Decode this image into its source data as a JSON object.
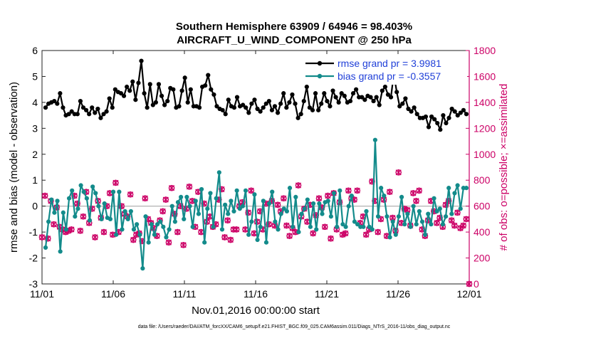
{
  "chart_data": {
    "type": "line",
    "title_line1": "Southern Hemisphere 63909 / 64946 = 98.403%",
    "title_line2": "AIRCRAFT_U_WIND_COMPONENT @ 250 hPa",
    "xlabel": "Nov.01,2016 00:00:00 start",
    "ylabel_left": "rmse and bias (model - observation)",
    "ylabel_right": "# of obs: o=possible; ×=assimilated",
    "footer": "data file: /Users/raeder/DAI/ATM_forcXX/CAM6_setup/f.e21.FHIST_BGC.f09_025.CAM6assim.011/Diags_NTrS_2016-11/obs_diag_output.nc",
    "xlim": [
      0,
      30
    ],
    "ylim_left": [
      -3,
      6
    ],
    "ylim_right": [
      0,
      1800
    ],
    "x_ticks": [
      0,
      5,
      10,
      15,
      20,
      25,
      30
    ],
    "x_tick_labels": [
      "11/01",
      "11/06",
      "11/11",
      "11/16",
      "11/21",
      "11/26",
      "12/01"
    ],
    "y_left_ticks": [
      -3,
      -2,
      -1,
      0,
      1,
      2,
      3,
      4,
      5,
      6
    ],
    "y_left_tick_labels": [
      "-3",
      "-2",
      "-1",
      "0",
      "1",
      "2",
      "3",
      "4",
      "5",
      "6"
    ],
    "y_right_ticks": [
      0,
      200,
      400,
      600,
      800,
      1000,
      1200,
      1400,
      1600,
      1800
    ],
    "y_right_tick_labels": [
      "0",
      "200",
      "400",
      "600",
      "800",
      "1000",
      "1200",
      "1400",
      "1600",
      "1800"
    ],
    "legend_location": "top-right",
    "series": [
      {
        "name": "rmse grand pr = 3.9981",
        "color": "#000000",
        "axis": "left",
        "values": [
          3.8,
          3.95,
          4.0,
          4.05,
          3.95,
          4.35,
          3.8,
          3.5,
          3.55,
          3.65,
          3.55,
          3.55,
          4.05,
          3.8,
          3.7,
          3.55,
          3.8,
          3.6,
          3.75,
          3.4,
          3.55,
          3.65,
          4.15,
          3.8,
          4.5,
          4.4,
          4.35,
          4.25,
          4.6,
          4.45,
          4.8,
          4.1,
          4.75,
          5.6,
          4.35,
          3.8,
          4.7,
          3.9,
          4.0,
          4.7,
          4.25,
          3.9,
          4.05,
          4.55,
          4.5,
          3.8,
          3.85,
          4.45,
          4.95,
          4.0,
          4.5,
          3.85,
          3.85,
          3.8,
          4.6,
          4.65,
          5.05,
          4.5,
          4.3,
          3.85,
          3.75,
          3.7,
          3.55,
          4.1,
          3.85,
          3.8,
          4.2,
          3.85,
          3.9,
          3.8,
          3.6,
          3.95,
          4.1,
          3.75,
          3.65,
          3.8,
          3.95,
          4.05,
          3.7,
          3.85,
          3.6,
          3.95,
          4.35,
          3.8,
          4.0,
          4.3,
          3.95,
          3.4,
          3.55,
          4.05,
          4.6,
          3.8,
          3.7,
          4.35,
          3.7,
          3.95,
          4.35,
          4.05,
          3.85,
          4.45,
          4.2,
          4.0,
          4.35,
          4.25,
          4.0,
          4.05,
          4.35,
          4.5,
          4.2,
          4.2,
          4.1,
          4.25,
          4.2,
          4.05,
          4.2,
          3.9,
          4.45,
          4.6,
          4.3,
          4.2,
          5.1,
          4.4,
          3.85,
          3.95,
          4.15,
          3.75,
          3.65,
          3.8,
          3.55,
          3.4,
          3.4,
          3.45,
          3.05,
          3.45,
          3.35,
          3.2,
          2.95,
          3.5,
          3.2,
          3.4,
          3.75,
          3.65,
          3.5,
          3.6,
          3.7,
          3.55
        ],
        "marker": "filled-circle"
      },
      {
        "name": "bias grand pr = -0.3557",
        "color": "#138b8b",
        "axis": "left",
        "values": [
          -1.6,
          -0.6,
          0.25,
          -0.25,
          0.2,
          -1.75,
          -0.25,
          -0.9,
          0.3,
          0.6,
          -0.4,
          -0.1,
          0.8,
          0.55,
          0.3,
          -0.55,
          0.75,
          0.5,
          0.0,
          -0.5,
          0.1,
          -0.45,
          -0.5,
          0.55,
          -1.1,
          0.55,
          -0.9,
          -0.2,
          -0.5,
          -0.2,
          -0.9,
          -0.7,
          -1.1,
          -2.4,
          -0.4,
          -1.4,
          -0.7,
          -1.1,
          -0.7,
          -0.6,
          -0.8,
          -1.2,
          -0.9,
          0.0,
          -0.6,
          0.15,
          0.35,
          -0.5,
          0.35,
          0.0,
          -0.8,
          0.2,
          -0.3,
          0.65,
          -1.4,
          -0.1,
          0.5,
          -0.8,
          0.3,
          1.3,
          -0.9,
          0.05,
          -0.3,
          0.2,
          -0.2,
          0.6,
          -0.1,
          0.0,
          0.6,
          -1.1,
          -0.6,
          0.45,
          -1.3,
          -0.8,
          0.2,
          -1.4,
          0.1,
          0.55,
          -0.6,
          -0.9,
          -0.3,
          -0.1,
          -0.2,
          0.7,
          -0.8,
          0.35,
          -1.0,
          -0.3,
          -0.1,
          0.25,
          -0.8,
          0.1,
          -0.9,
          0.1,
          -0.3,
          0.15,
          0.2,
          -0.4,
          0.5,
          -0.8,
          0.6,
          -0.7,
          -0.8,
          0.0,
          0.4,
          -0.6,
          -0.7,
          -0.8,
          -0.8,
          -0.2,
          -0.8,
          -0.9,
          2.55,
          -0.4,
          0.7,
          0.4,
          -0.4,
          -1.2,
          -0.6,
          -1.1,
          -0.4,
          0.35,
          -0.7,
          -0.3,
          -0.8,
          0.0,
          -0.7,
          -0.2,
          -0.6,
          -1.1,
          -0.3,
          -0.7,
          0.3,
          -0.2,
          -0.1,
          -0.7,
          -0.4,
          0.7,
          -0.3,
          0.5,
          0.8,
          -0.1,
          0.7,
          0.7
        ],
        "marker": "filled-circle"
      },
      {
        "name": "# of obs possible",
        "color": "#cc0066",
        "axis": "right",
        "marker": "open-circle",
        "values": [
          360,
          680,
          350,
          640,
          460,
          590,
          440,
          420,
          400,
          410,
          420,
          680,
          620,
          410,
          520,
          710,
          470,
          580,
          360,
          640,
          510,
          400,
          600,
          700,
          380,
          780,
          400,
          600,
          540,
          520,
          690,
          340,
          380,
          390,
          330,
          660,
          500,
          470,
          430,
          370,
          490,
          560,
          650,
          320,
          740,
          540,
          400,
          600,
          300,
          580,
          750,
          640,
          440,
          710,
          400,
          620,
          480,
          520,
          440,
          460,
          650,
          730,
          360,
          490,
          340,
          420,
          420,
          600,
          630,
          420,
          550,
          720,
          390,
          480,
          560,
          420,
          620,
          460,
          640,
          450,
          610,
          560,
          660,
          450,
          370,
          430,
          400,
          760,
          520,
          580,
          480,
          610,
          390,
          530,
          660,
          590,
          440,
          680,
          350,
          700,
          420,
          630,
          380,
          390,
          720,
          660,
          650,
          720,
          470,
          520,
          380,
          420,
          790,
          640,
          400,
          500,
          650,
          370,
          710,
          510,
          410,
          860,
          470,
          580,
          570,
          450,
          700,
          640,
          720,
          420,
          370,
          490,
          640,
          560,
          470,
          510,
          440,
          610,
          640,
          490,
          450,
          550,
          430,
          450,
          500,
          0
        ]
      },
      {
        "name": "# of obs assimilated",
        "color": "#cc0066",
        "axis": "right",
        "marker": "cross",
        "values": [
          360,
          680,
          350,
          640,
          460,
          590,
          440,
          420,
          400,
          410,
          420,
          680,
          620,
          410,
          520,
          710,
          470,
          580,
          360,
          640,
          510,
          400,
          600,
          700,
          380,
          780,
          400,
          600,
          540,
          520,
          690,
          340,
          380,
          390,
          330,
          660,
          500,
          470,
          430,
          370,
          490,
          560,
          650,
          320,
          740,
          540,
          400,
          600,
          300,
          580,
          750,
          640,
          440,
          710,
          400,
          620,
          480,
          520,
          440,
          460,
          650,
          730,
          360,
          490,
          340,
          420,
          420,
          600,
          630,
          420,
          550,
          720,
          390,
          480,
          560,
          420,
          620,
          460,
          640,
          450,
          610,
          560,
          660,
          450,
          370,
          430,
          400,
          760,
          520,
          580,
          480,
          610,
          390,
          530,
          660,
          590,
          440,
          680,
          350,
          700,
          420,
          630,
          380,
          390,
          720,
          660,
          650,
          720,
          470,
          520,
          380,
          420,
          790,
          640,
          400,
          500,
          650,
          370,
          710,
          510,
          410,
          860,
          470,
          580,
          570,
          450,
          700,
          640,
          720,
          420,
          370,
          490,
          640,
          560,
          470,
          510,
          440,
          610,
          640,
          490,
          450,
          550,
          430,
          450,
          500,
          0
        ]
      }
    ]
  },
  "colors": {
    "left_axis": "#000000",
    "right_axis": "#cc0066",
    "legend_text": "#1f3fd8",
    "zero_line": "#b8b8b8"
  }
}
